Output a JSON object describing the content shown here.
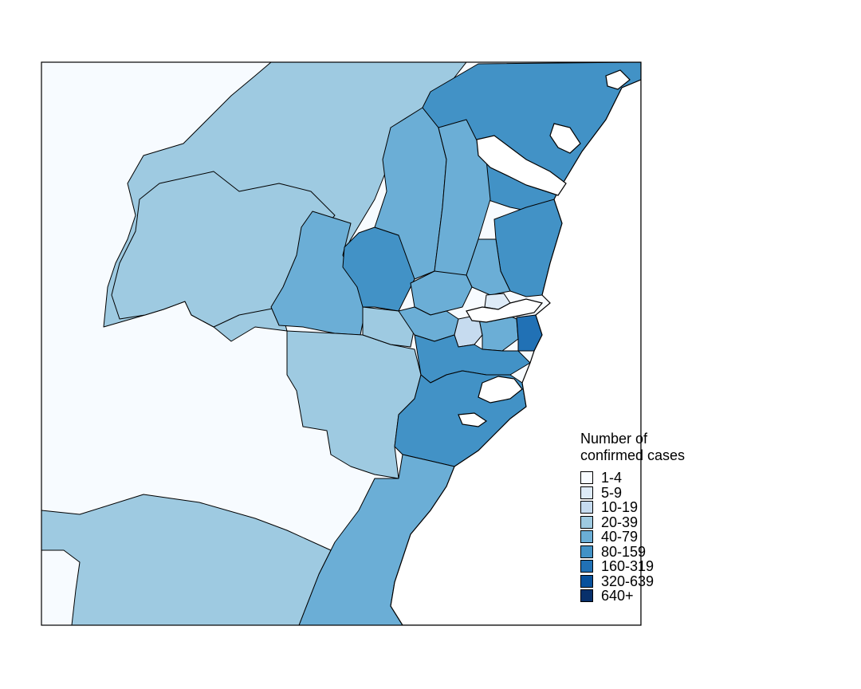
{
  "legend": {
    "title_line1": "Number of",
    "title_line2": "confirmed cases",
    "items": [
      {
        "label": "1-4",
        "color": "#f7fbff"
      },
      {
        "label": "5-9",
        "color": "#deebf7"
      },
      {
        "label": "10-19",
        "color": "#c6dbef"
      },
      {
        "label": "20-39",
        "color": "#9ecae1"
      },
      {
        "label": "40-79",
        "color": "#6baed6"
      },
      {
        "label": "80-159",
        "color": "#4292c6"
      },
      {
        "label": "160-319",
        "color": "#2171b5"
      },
      {
        "label": "320-639",
        "color": "#08519c"
      },
      {
        "label": "640+",
        "color": "#08306b"
      }
    ]
  }
}
